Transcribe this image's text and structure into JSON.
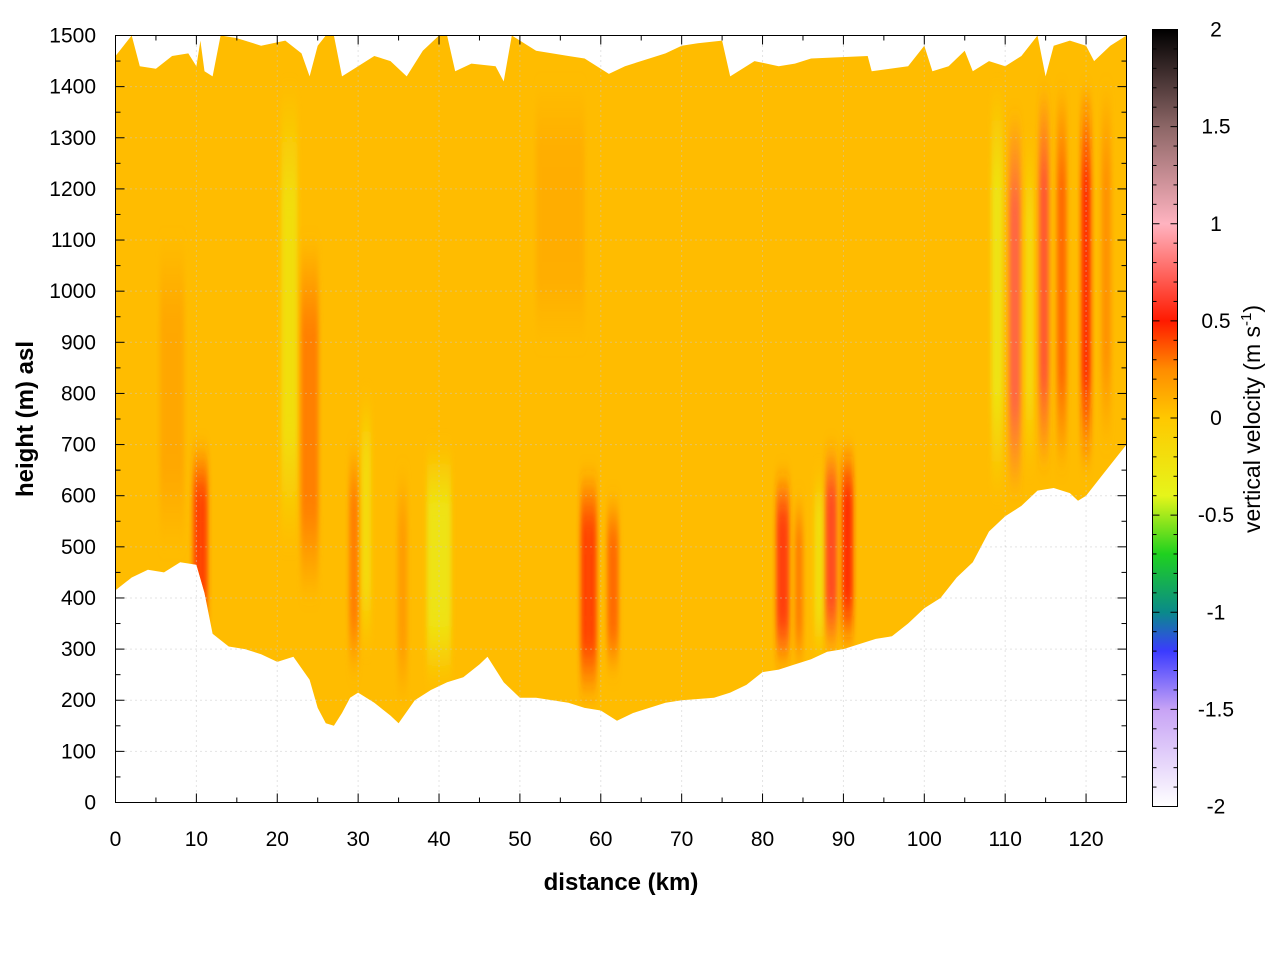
{
  "chart_data": {
    "type": "heatmap",
    "title": "",
    "xlabel": "distance (km)",
    "ylabel": "height (m) asl",
    "colorbar_label": "vertical velocity (m s",
    "colorbar_label_sup": "-1",
    "colorbar_label_end": ")",
    "xlim": [
      0,
      125
    ],
    "ylim": [
      0,
      1500
    ],
    "clim": [
      -2,
      2
    ],
    "x_ticks": [
      "0",
      "10",
      "20",
      "30",
      "40",
      "50",
      "60",
      "70",
      "80",
      "90",
      "100",
      "110",
      "120"
    ],
    "y_ticks": [
      "0",
      "100",
      "200",
      "300",
      "400",
      "500",
      "600",
      "700",
      "800",
      "900",
      "1000",
      "1100",
      "1200",
      "1300",
      "1400",
      "1500"
    ],
    "colorbar_ticks": [
      "-2",
      "-1.5",
      "-1",
      "-0.5",
      "0",
      "0.5",
      "1",
      "1.5",
      "2"
    ],
    "grid": true,
    "colormap": [
      {
        "value": -2.0,
        "color": "#ffffff"
      },
      {
        "value": -1.5,
        "color": "#c7a3f5"
      },
      {
        "value": -1.2,
        "color": "#3b3bff"
      },
      {
        "value": -1.0,
        "color": "#0a8a8a"
      },
      {
        "value": -0.7,
        "color": "#1fd11f"
      },
      {
        "value": -0.4,
        "color": "#e6f51a"
      },
      {
        "value": 0.0,
        "color": "#ffc800"
      },
      {
        "value": 0.25,
        "color": "#ff8c00"
      },
      {
        "value": 0.5,
        "color": "#ff1a00"
      },
      {
        "value": 1.0,
        "color": "#ffb3c0"
      },
      {
        "value": 1.5,
        "color": "#8c6666"
      },
      {
        "value": 2.0,
        "color": "#000000"
      }
    ],
    "base_value": 0.05,
    "lower_boundary": [
      [
        0,
        415
      ],
      [
        2,
        440
      ],
      [
        4,
        455
      ],
      [
        6,
        450
      ],
      [
        8,
        470
      ],
      [
        10,
        465
      ],
      [
        11,
        410
      ],
      [
        12,
        330
      ],
      [
        14,
        305
      ],
      [
        16,
        300
      ],
      [
        18,
        290
      ],
      [
        20,
        275
      ],
      [
        22,
        285
      ],
      [
        24,
        240
      ],
      [
        25,
        185
      ],
      [
        26,
        155
      ],
      [
        27,
        150
      ],
      [
        28,
        175
      ],
      [
        29,
        205
      ],
      [
        30,
        215
      ],
      [
        32,
        195
      ],
      [
        34,
        170
      ],
      [
        35,
        155
      ],
      [
        37,
        200
      ],
      [
        39,
        220
      ],
      [
        41,
        235
      ],
      [
        43,
        245
      ],
      [
        45,
        270
      ],
      [
        46,
        285
      ],
      [
        48,
        235
      ],
      [
        50,
        205
      ],
      [
        52,
        205
      ],
      [
        54,
        200
      ],
      [
        56,
        195
      ],
      [
        58,
        185
      ],
      [
        60,
        180
      ],
      [
        62,
        160
      ],
      [
        64,
        175
      ],
      [
        66,
        185
      ],
      [
        68,
        195
      ],
      [
        70,
        200
      ],
      [
        74,
        205
      ],
      [
        76,
        215
      ],
      [
        78,
        230
      ],
      [
        80,
        255
      ],
      [
        82,
        260
      ],
      [
        84,
        270
      ],
      [
        86,
        280
      ],
      [
        88,
        295
      ],
      [
        90,
        300
      ],
      [
        92,
        310
      ],
      [
        94,
        320
      ],
      [
        96,
        325
      ],
      [
        98,
        350
      ],
      [
        100,
        380
      ],
      [
        102,
        400
      ],
      [
        104,
        440
      ],
      [
        106,
        470
      ],
      [
        108,
        530
      ],
      [
        110,
        560
      ],
      [
        112,
        580
      ],
      [
        114,
        610
      ],
      [
        116,
        615
      ],
      [
        118,
        605
      ],
      [
        119,
        590
      ],
      [
        120,
        600
      ],
      [
        122,
        640
      ],
      [
        124,
        680
      ],
      [
        125,
        700
      ]
    ],
    "upper_boundary": [
      [
        0,
        1460
      ],
      [
        1,
        1480
      ],
      [
        2,
        1500
      ],
      [
        3,
        1440
      ],
      [
        5,
        1435
      ],
      [
        7,
        1460
      ],
      [
        9,
        1465
      ],
      [
        10,
        1440
      ],
      [
        10.5,
        1490
      ],
      [
        11,
        1430
      ],
      [
        12,
        1420
      ],
      [
        13,
        1500
      ],
      [
        15,
        1495
      ],
      [
        18,
        1480
      ],
      [
        21,
        1490
      ],
      [
        23,
        1465
      ],
      [
        24,
        1420
      ],
      [
        25,
        1480
      ],
      [
        26,
        1500
      ],
      [
        27,
        1500
      ],
      [
        28,
        1420
      ],
      [
        30,
        1440
      ],
      [
        32,
        1460
      ],
      [
        34,
        1450
      ],
      [
        36,
        1420
      ],
      [
        38,
        1470
      ],
      [
        40,
        1500
      ],
      [
        41,
        1500
      ],
      [
        42,
        1430
      ],
      [
        44,
        1445
      ],
      [
        47,
        1440
      ],
      [
        48,
        1410
      ],
      [
        49,
        1500
      ],
      [
        52,
        1470
      ],
      [
        54,
        1465
      ],
      [
        56,
        1460
      ],
      [
        58,
        1455
      ],
      [
        61,
        1425
      ],
      [
        63,
        1440
      ],
      [
        66,
        1455
      ],
      [
        68,
        1465
      ],
      [
        70,
        1480
      ],
      [
        72,
        1485
      ],
      [
        75,
        1490
      ],
      [
        76,
        1420
      ],
      [
        79,
        1450
      ],
      [
        82,
        1440
      ],
      [
        84,
        1445
      ],
      [
        86,
        1455
      ],
      [
        93,
        1460
      ],
      [
        93.5,
        1430
      ],
      [
        98,
        1440
      ],
      [
        100,
        1480
      ],
      [
        101,
        1430
      ],
      [
        103,
        1440
      ],
      [
        105,
        1470
      ],
      [
        106,
        1430
      ],
      [
        108,
        1450
      ],
      [
        110,
        1440
      ],
      [
        112,
        1460
      ],
      [
        114,
        1500
      ],
      [
        115,
        1420
      ],
      [
        116,
        1480
      ],
      [
        118,
        1490
      ],
      [
        120,
        1480
      ],
      [
        121,
        1450
      ],
      [
        123,
        1480
      ],
      [
        125,
        1500
      ]
    ],
    "features": [
      {
        "x": 10.5,
        "width": 1.8,
        "ymin": 300,
        "ymax": 700,
        "value": 0.45
      },
      {
        "x": 7.0,
        "width": 3.0,
        "ymin": 500,
        "ymax": 1100,
        "value": 0.15
      },
      {
        "x": 21.5,
        "width": 2.0,
        "ymin": 500,
        "ymax": 1400,
        "value": -0.25
      },
      {
        "x": 24.0,
        "width": 2.2,
        "ymin": 400,
        "ymax": 1100,
        "value": 0.3
      },
      {
        "x": 29.5,
        "width": 1.2,
        "ymin": 250,
        "ymax": 700,
        "value": 0.3
      },
      {
        "x": 31.0,
        "width": 1.2,
        "ymin": 300,
        "ymax": 800,
        "value": -0.2
      },
      {
        "x": 40.0,
        "width": 3.0,
        "ymin": 230,
        "ymax": 700,
        "value": -0.3
      },
      {
        "x": 35.5,
        "width": 1.2,
        "ymin": 200,
        "ymax": 650,
        "value": 0.2
      },
      {
        "x": 58.5,
        "width": 2.0,
        "ymin": 200,
        "ymax": 650,
        "value": 0.45
      },
      {
        "x": 61.5,
        "width": 1.4,
        "ymin": 250,
        "ymax": 600,
        "value": 0.35
      },
      {
        "x": 55.0,
        "width": 6.0,
        "ymin": 900,
        "ymax": 1400,
        "value": 0.12
      },
      {
        "x": 82.5,
        "width": 1.6,
        "ymin": 260,
        "ymax": 650,
        "value": 0.55
      },
      {
        "x": 84.5,
        "width": 1.0,
        "ymin": 260,
        "ymax": 600,
        "value": 0.3
      },
      {
        "x": 87.0,
        "width": 1.2,
        "ymin": 280,
        "ymax": 650,
        "value": -0.25
      },
      {
        "x": 88.5,
        "width": 1.4,
        "ymin": 290,
        "ymax": 700,
        "value": 0.6
      },
      {
        "x": 90.5,
        "width": 1.4,
        "ymin": 300,
        "ymax": 700,
        "value": 0.5
      },
      {
        "x": 109.0,
        "width": 1.4,
        "ymin": 600,
        "ymax": 1400,
        "value": -0.3
      },
      {
        "x": 111.2,
        "width": 1.4,
        "ymin": 600,
        "ymax": 1350,
        "value": 0.7
      },
      {
        "x": 113.0,
        "width": 1.0,
        "ymin": 650,
        "ymax": 1300,
        "value": -0.2
      },
      {
        "x": 114.8,
        "width": 1.2,
        "ymin": 650,
        "ymax": 1400,
        "value": 0.65
      },
      {
        "x": 117.0,
        "width": 1.2,
        "ymin": 650,
        "ymax": 1400,
        "value": 0.35
      },
      {
        "x": 120.0,
        "width": 1.2,
        "ymin": 650,
        "ymax": 1400,
        "value": 0.5
      },
      {
        "x": 122.5,
        "width": 1.2,
        "ymin": 700,
        "ymax": 1400,
        "value": 0.25
      }
    ]
  }
}
